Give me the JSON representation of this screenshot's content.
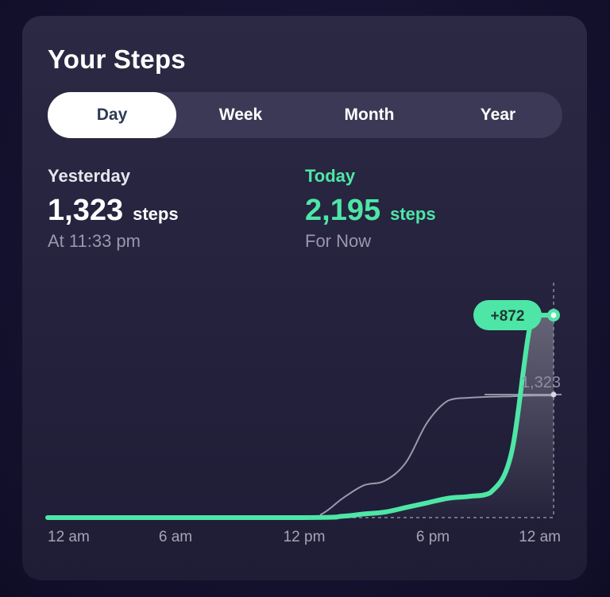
{
  "card": {
    "title": "Your Steps"
  },
  "tabs": [
    {
      "label": "Day",
      "active": true
    },
    {
      "label": "Week",
      "active": false
    },
    {
      "label": "Month",
      "active": false
    },
    {
      "label": "Year",
      "active": false
    }
  ],
  "yesterday": {
    "label": "Yesterday",
    "value": "1,323",
    "unit": "steps",
    "sub": "At 11:33 pm"
  },
  "today": {
    "label": "Today",
    "value": "2,195",
    "unit": "steps",
    "sub": "For Now"
  },
  "colors": {
    "accent": "#4ee6a6",
    "reference": "#9b99ae",
    "tab_active_text": "#2d3b55"
  },
  "chart_data": {
    "type": "line",
    "x_ticks": [
      "12 am",
      "6 am",
      "12 pm",
      "6 pm",
      "12 am"
    ],
    "x_unit": "hours",
    "xlim": [
      0,
      24
    ],
    "ylim": [
      0,
      2195
    ],
    "series": [
      {
        "x": [
          0,
          12,
          14,
          15,
          16,
          17,
          18,
          19,
          20,
          21,
          22,
          23,
          24
        ],
        "values": [
          0,
          0,
          15,
          40,
          60,
          110,
          160,
          210,
          230,
          270,
          700,
          2195,
          2195
        ]
      },
      {
        "x": [
          0,
          12,
          13,
          14,
          15,
          16,
          17,
          18,
          19,
          20,
          21,
          22,
          23,
          24
        ],
        "values": [
          0,
          0,
          40,
          210,
          350,
          400,
          600,
          1030,
          1270,
          1300,
          1310,
          1315,
          1323,
          1323
        ]
      }
    ],
    "annotations": [
      {
        "text": "+872"
      },
      {
        "text": "1,323"
      }
    ]
  }
}
